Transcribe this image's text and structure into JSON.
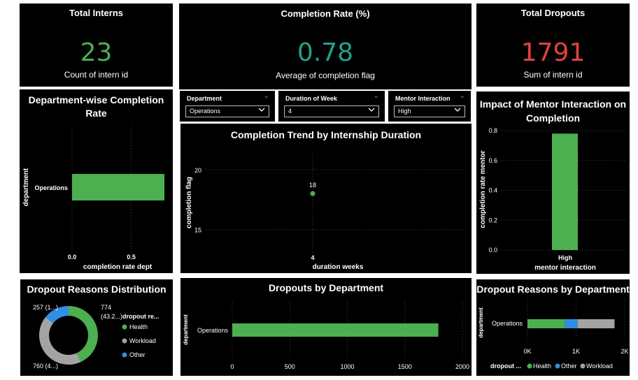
{
  "colors": {
    "green": "#4caf50",
    "teal": "#1fa38f",
    "red": "#e0443b",
    "blue": "#2f8fe6",
    "gray": "#a3a3a3",
    "bg": "#000000",
    "grid": "#444444"
  },
  "kpis": [
    {
      "title": "Total Interns",
      "value": "23",
      "caption": "Count of intern id",
      "color": "#4caf50"
    },
    {
      "title": "Completion Rate (%)",
      "value": "0.78",
      "caption": "Average of completion flag",
      "color": "#1fa38f"
    },
    {
      "title": "Total Dropouts",
      "value": "1791",
      "caption": "Sum of intern id",
      "color": "#e0443b"
    }
  ],
  "slicers": [
    {
      "label": "Department",
      "value": "Operations"
    },
    {
      "label": "Duration of Week",
      "value": "4"
    },
    {
      "label": "Mentor Interaction",
      "value": "High"
    }
  ],
  "charts": {
    "dept_completion": {
      "title_line1": "Department-wise Completion",
      "title_line2": "Rate"
    },
    "trend": {
      "title": "Completion Trend by Internship Duration"
    },
    "mentor": {
      "title_line1": "Impact of Mentor Interaction on",
      "title_line2": "Completion"
    },
    "dropout_reasons": {
      "title": "Dropout Reasons Distribution"
    },
    "dropouts_dept": {
      "title": "Dropouts by Department"
    },
    "reasons_by_dept": {
      "title": "Dropout Reasons by Department"
    }
  },
  "chart_data": [
    {
      "id": "dept_completion",
      "type": "bar",
      "orientation": "horizontal",
      "categories": [
        "Operations"
      ],
      "values": [
        0.78
      ],
      "xlabel": "completion rate dept",
      "ylabel": "department",
      "xticks": [
        "0.0",
        "0.5"
      ],
      "xlim": [
        0,
        0.78
      ],
      "grid": true
    },
    {
      "id": "trend",
      "type": "scatter",
      "x": [
        "4"
      ],
      "y": [
        18
      ],
      "data_labels": [
        "18"
      ],
      "xlabel": "duration weeks",
      "ylabel": "completion flag",
      "yticks": [
        "20",
        "15"
      ],
      "ylim": [
        13,
        21.5
      ],
      "grid": true
    },
    {
      "id": "mentor",
      "type": "bar",
      "categories": [
        "High"
      ],
      "values": [
        0.78
      ],
      "xlabel": "mentor interaction",
      "ylabel": "completion rate mentor",
      "yticks": [
        "0.8",
        "0.6",
        "0.4",
        "0.2",
        "0.0"
      ],
      "ylim": [
        0,
        0.8
      ],
      "grid": true
    },
    {
      "id": "dropout_reasons",
      "type": "pie",
      "donut": true,
      "legend_title": "dropout re...",
      "slices": [
        {
          "name": "Health",
          "value": 774,
          "label": "774",
          "pct_label": "(43.2...)"
        },
        {
          "name": "Workload",
          "value": 760,
          "label": "760 (4...)"
        },
        {
          "name": "Other",
          "value": 257,
          "label": "257 (1...)"
        }
      ]
    },
    {
      "id": "dropouts_dept",
      "type": "bar",
      "orientation": "horizontal",
      "categories": [
        "Operations"
      ],
      "values": [
        1791
      ],
      "ylabel": "department",
      "xticks": [
        "0",
        "500",
        "1000",
        "1500",
        "2000"
      ],
      "xlim": [
        0,
        2000
      ],
      "grid": true
    },
    {
      "id": "reasons_by_dept",
      "type": "bar",
      "orientation": "horizontal",
      "stacked": true,
      "categories": [
        "Operations"
      ],
      "series": [
        {
          "name": "Health",
          "values": [
            774
          ]
        },
        {
          "name": "Other",
          "values": [
            257
          ]
        },
        {
          "name": "Workload",
          "values": [
            760
          ]
        }
      ],
      "ylabel": "department",
      "legend_title": "dropout ...",
      "xticks": [
        "0K",
        "1K",
        "2K"
      ],
      "xlim": [
        0,
        2000
      ],
      "grid": true
    }
  ]
}
